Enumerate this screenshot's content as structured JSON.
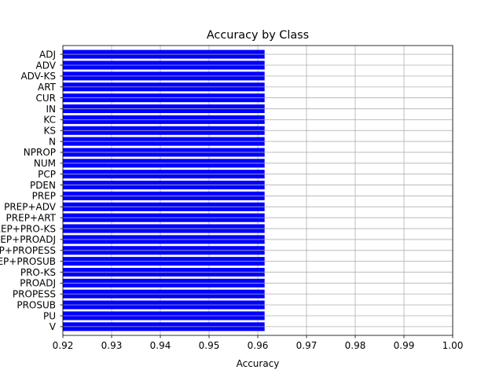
{
  "chart_data": {
    "type": "bar",
    "orientation": "horizontal",
    "title": "Accuracy by Class",
    "xlabel": "Accuracy",
    "ylabel": "",
    "xlim": [
      0.92,
      1.0
    ],
    "xticks": [
      "0.92",
      "0.93",
      "0.94",
      "0.95",
      "0.96",
      "0.97",
      "0.98",
      "0.99",
      "1.00"
    ],
    "grid": true,
    "bar_color": "#0000ff",
    "categories": [
      "ADJ",
      "ADV",
      "ADV-KS",
      "ART",
      "CUR",
      "IN",
      "KC",
      "KS",
      "N",
      "NPROP",
      "NUM",
      "PCP",
      "PDEN",
      "PREP",
      "PREP+ADV",
      "PREP+ART",
      "PREP+PRO-KS",
      "PREP+PROADJ",
      "PREP+PROPESS",
      "PREP+PROSUB",
      "PRO-KS",
      "PROADJ",
      "PROPESS",
      "PROSUB",
      "PU",
      "V"
    ],
    "values": [
      0.9614,
      0.9614,
      0.9614,
      0.9614,
      0.9614,
      0.9614,
      0.9614,
      0.9614,
      0.9614,
      0.9614,
      0.9614,
      0.9614,
      0.9614,
      0.9614,
      0.9614,
      0.9614,
      0.9614,
      0.9614,
      0.9614,
      0.9614,
      0.9614,
      0.9614,
      0.9614,
      0.9614,
      0.9614,
      0.9614
    ]
  }
}
